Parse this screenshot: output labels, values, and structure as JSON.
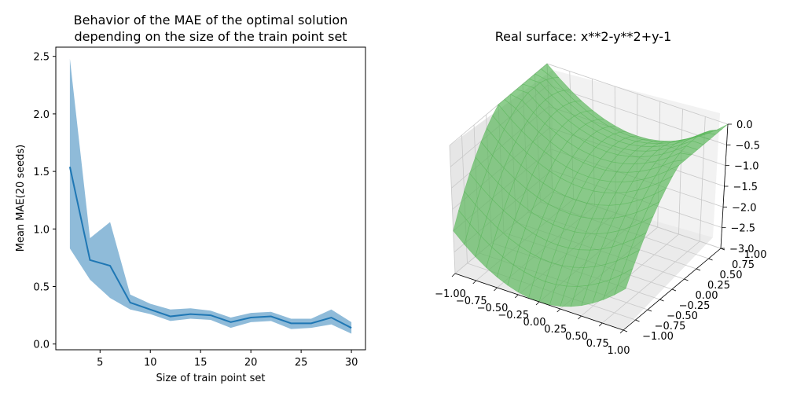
{
  "chart_data": [
    {
      "type": "line",
      "title": "Behavior of the MAE of the optimal solution\n depending on the size of the train point set",
      "title_lines": [
        "Behavior of the MAE of the optimal solution",
        " depending on the size of the train point set"
      ],
      "xlabel": "Size of train point set",
      "ylabel": "Mean MAE(20 seeds)",
      "xlim": [
        0.6,
        31.4
      ],
      "ylim": [
        -0.05,
        2.58
      ],
      "xticks": [
        5,
        10,
        15,
        20,
        25,
        30
      ],
      "xtick_labels": [
        "5",
        "10",
        "15",
        "20",
        "25",
        "30"
      ],
      "yticks": [
        0.0,
        0.5,
        1.0,
        1.5,
        2.0,
        2.5
      ],
      "ytick_labels": [
        "0.0",
        "0.5",
        "1.0",
        "1.5",
        "2.0",
        "2.5"
      ],
      "grid": false,
      "x": [
        2,
        4,
        6,
        8,
        10,
        12,
        14,
        16,
        18,
        20,
        22,
        24,
        26,
        28,
        30
      ],
      "series": [
        {
          "kind": "line",
          "color": "#1f77b4",
          "values": [
            1.54,
            0.73,
            0.68,
            0.36,
            0.3,
            0.24,
            0.26,
            0.25,
            0.19,
            0.23,
            0.24,
            0.18,
            0.18,
            0.23,
            0.14
          ]
        },
        {
          "kind": "band",
          "color": "#1f77b4",
          "opacity": 0.5,
          "upper": [
            2.48,
            0.92,
            1.06,
            0.43,
            0.35,
            0.3,
            0.31,
            0.29,
            0.23,
            0.27,
            0.28,
            0.22,
            0.22,
            0.3,
            0.19
          ],
          "lower": [
            0.83,
            0.56,
            0.4,
            0.3,
            0.26,
            0.2,
            0.22,
            0.21,
            0.14,
            0.19,
            0.2,
            0.13,
            0.14,
            0.17,
            0.09
          ]
        }
      ]
    },
    {
      "type": "surface3d",
      "title": "Real surface: x**2-y**2+y-1",
      "function": "x**2-y**2+y-1",
      "x_range": [
        -1.0,
        1.0
      ],
      "y_range": [
        -1.0,
        1.0
      ],
      "z_range": [
        -3.0,
        0.0
      ],
      "xticks": [
        -1.0,
        -0.75,
        -0.5,
        -0.25,
        0.0,
        0.25,
        0.5,
        0.75,
        1.0
      ],
      "xtick_labels": [
        "−1.00",
        "−0.75",
        "−0.50",
        "−0.25",
        "0.00",
        "0.25",
        "0.50",
        "0.75",
        "1.00"
      ],
      "yticks": [
        -1.0,
        -0.75,
        -0.5,
        -0.25,
        0.0,
        0.25,
        0.5,
        0.75,
        1.0
      ],
      "ytick_labels": [
        "−1.00",
        "−0.75",
        "−0.50",
        "−0.25",
        "0.00",
        "0.25",
        "0.50",
        "0.75",
        "1.00"
      ],
      "zticks": [
        0.0,
        -0.5,
        -1.0,
        -1.5,
        -2.0,
        -2.5,
        -3.0
      ],
      "ztick_labels": [
        "0.0",
        "−0.5",
        "−1.0",
        "−1.5",
        "−2.0",
        "−2.5",
        "−3.0"
      ],
      "surface_color": "#5cb85c",
      "surface_opacity": 0.75,
      "pane_color": "#f2f2f2",
      "grid": true
    }
  ]
}
